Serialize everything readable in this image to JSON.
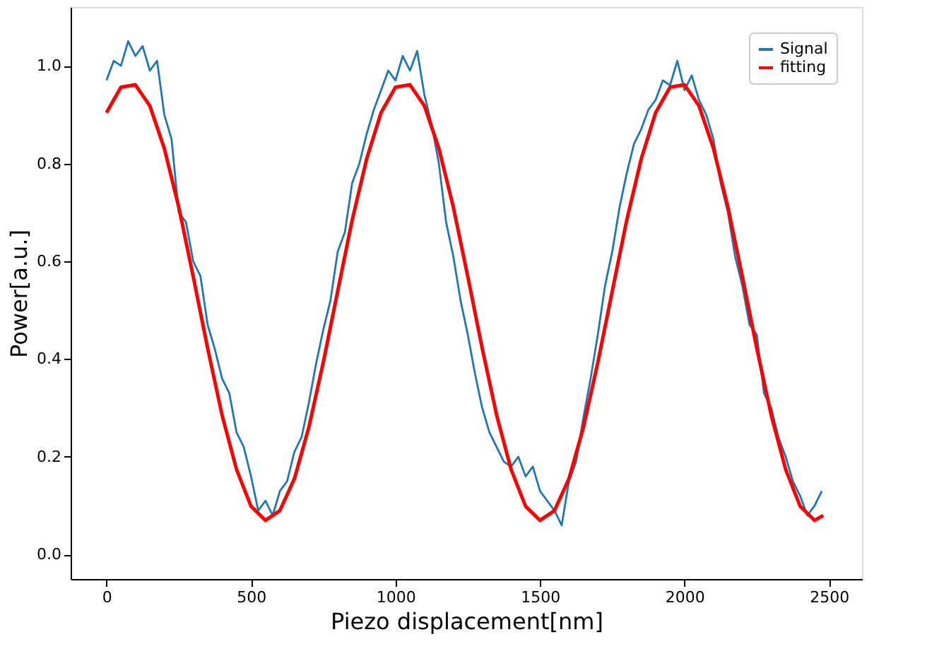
{
  "chart_data": {
    "type": "line",
    "xlabel": "Piezo displacement[nm]",
    "ylabel": "Power[a.u.]",
    "xlim": [
      -124,
      2614
    ],
    "ylim": [
      -0.05,
      1.12
    ],
    "xticks": [
      0,
      500,
      1000,
      1500,
      2000,
      2500
    ],
    "yticks": [
      {
        "value": 0,
        "label": "0.0"
      },
      {
        "value": 0.2,
        "label": "0.2"
      },
      {
        "value": 0.4,
        "label": "0.4"
      },
      {
        "value": 0.6,
        "label": "0.6"
      },
      {
        "value": 0.8,
        "label": "0.8"
      },
      {
        "value": 1,
        "label": "1.0"
      }
    ],
    "grid": false,
    "legend": "top right",
    "line_style": "solid",
    "marker": "none",
    "series": [
      {
        "name": "Signal",
        "color": "#1f77b4",
        "x": [
          0,
          25,
          50,
          75,
          100,
          125,
          150,
          175,
          200,
          225,
          250,
          275,
          300,
          325,
          350,
          375,
          400,
          425,
          450,
          475,
          500,
          525,
          550,
          575,
          600,
          625,
          650,
          675,
          700,
          725,
          750,
          775,
          800,
          825,
          850,
          875,
          900,
          925,
          950,
          975,
          1000,
          1025,
          1050,
          1075,
          1100,
          1125,
          1150,
          1175,
          1200,
          1225,
          1250,
          1275,
          1300,
          1325,
          1350,
          1375,
          1400,
          1425,
          1450,
          1475,
          1500,
          1525,
          1550,
          1575,
          1600,
          1625,
          1650,
          1675,
          1700,
          1725,
          1750,
          1775,
          1800,
          1825,
          1850,
          1875,
          1900,
          1925,
          1950,
          1975,
          2000,
          2025,
          2050,
          2075,
          2100,
          2125,
          2150,
          2175,
          2200,
          2225,
          2250,
          2275,
          2300,
          2325,
          2350,
          2375,
          2400,
          2425,
          2450,
          2475
        ],
        "values": [
          0.97,
          1.01,
          1.0,
          1.05,
          1.02,
          1.04,
          0.99,
          1.01,
          0.9,
          0.85,
          0.7,
          0.68,
          0.6,
          0.57,
          0.47,
          0.42,
          0.36,
          0.33,
          0.25,
          0.22,
          0.16,
          0.09,
          0.11,
          0.08,
          0.13,
          0.15,
          0.21,
          0.24,
          0.31,
          0.39,
          0.46,
          0.52,
          0.62,
          0.66,
          0.76,
          0.8,
          0.86,
          0.91,
          0.95,
          0.99,
          0.97,
          1.02,
          0.99,
          1.03,
          0.94,
          0.88,
          0.8,
          0.68,
          0.61,
          0.52,
          0.45,
          0.37,
          0.3,
          0.25,
          0.22,
          0.19,
          0.18,
          0.2,
          0.16,
          0.18,
          0.13,
          0.11,
          0.09,
          0.06,
          0.15,
          0.19,
          0.28,
          0.36,
          0.45,
          0.55,
          0.62,
          0.71,
          0.78,
          0.84,
          0.87,
          0.91,
          0.93,
          0.97,
          0.96,
          1.01,
          0.95,
          0.98,
          0.93,
          0.9,
          0.85,
          0.76,
          0.7,
          0.61,
          0.55,
          0.47,
          0.45,
          0.33,
          0.3,
          0.24,
          0.2,
          0.15,
          0.12,
          0.08,
          0.1,
          0.13
        ]
      },
      {
        "name": "fitting",
        "color": "#ff0000",
        "x": [
          0,
          50,
          100,
          150,
          200,
          250,
          300,
          350,
          400,
          450,
          500,
          550,
          600,
          650,
          700,
          750,
          800,
          850,
          900,
          950,
          1000,
          1050,
          1100,
          1150,
          1200,
          1250,
          1300,
          1350,
          1400,
          1450,
          1500,
          1550,
          1600,
          1650,
          1700,
          1750,
          1800,
          1850,
          1900,
          1950,
          2000,
          2050,
          2100,
          2150,
          2200,
          2250,
          2300,
          2350,
          2400,
          2450,
          2480
        ],
        "values": [
          0.904,
          0.956,
          0.961,
          0.918,
          0.831,
          0.711,
          0.569,
          0.422,
          0.285,
          0.174,
          0.099,
          0.07,
          0.09,
          0.155,
          0.26,
          0.393,
          0.539,
          0.684,
          0.809,
          0.904,
          0.956,
          0.961,
          0.918,
          0.831,
          0.711,
          0.569,
          0.422,
          0.285,
          0.174,
          0.099,
          0.07,
          0.09,
          0.155,
          0.26,
          0.393,
          0.539,
          0.684,
          0.809,
          0.904,
          0.956,
          0.961,
          0.918,
          0.831,
          0.711,
          0.569,
          0.422,
          0.285,
          0.174,
          0.099,
          0.07,
          0.08
        ]
      }
    ]
  }
}
